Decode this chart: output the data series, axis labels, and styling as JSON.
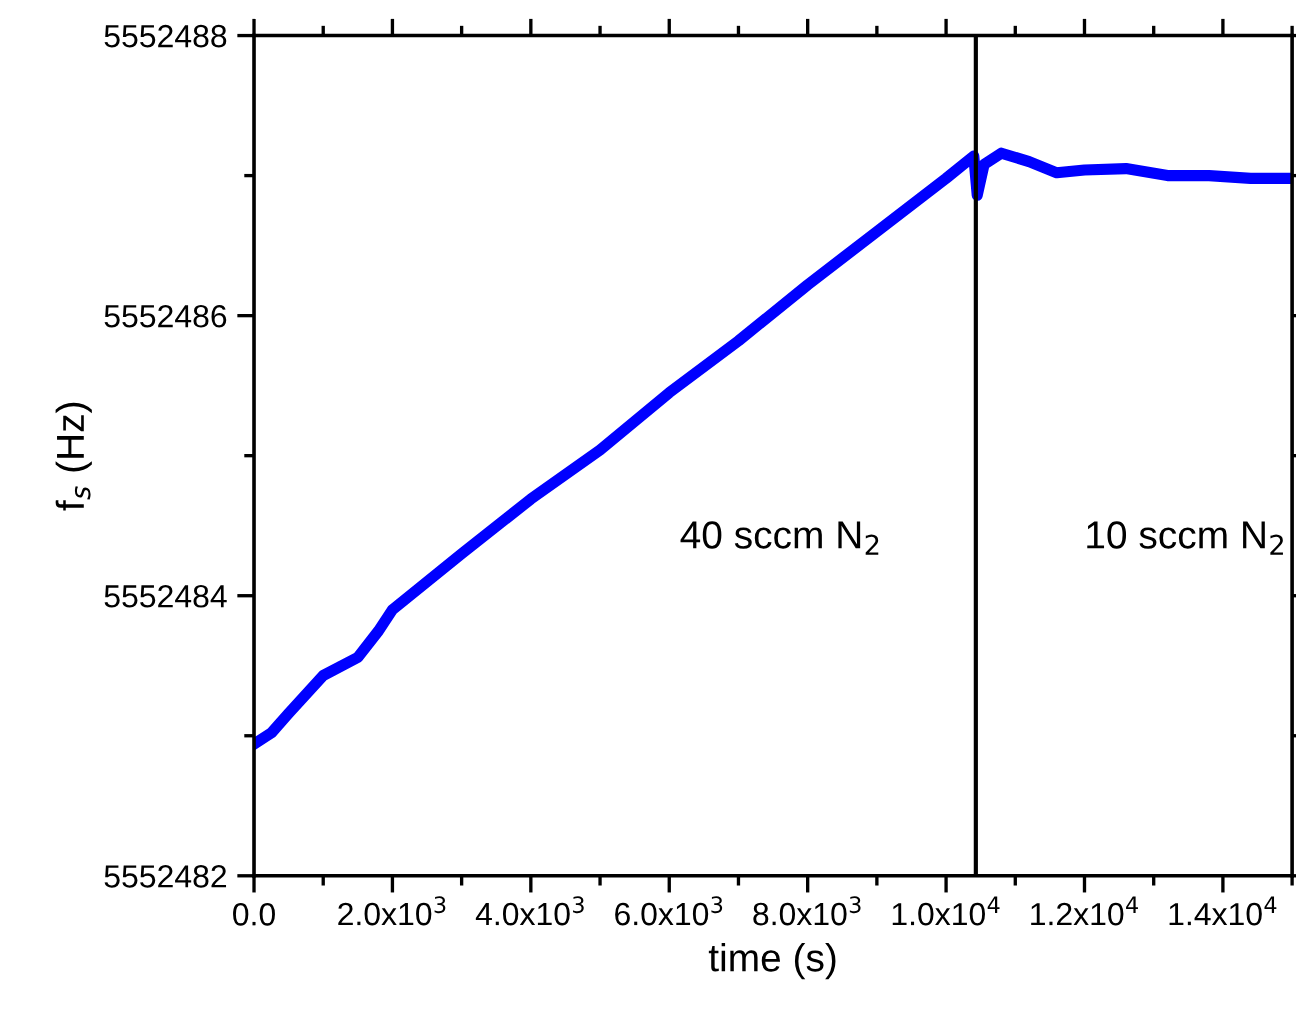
{
  "chart_data": {
    "type": "line",
    "xlabel": "time (s)",
    "ylabel": "f$_{s}$ (Hz)",
    "x": [
      0,
      250,
      500,
      1000,
      1500,
      1800,
      2000,
      3000,
      4000,
      5000,
      6000,
      7000,
      8000,
      9000,
      10000,
      10400,
      10450,
      10550,
      10800,
      11200,
      11600,
      12000,
      12600,
      13200,
      13800,
      14400,
      15000
    ],
    "series": [
      {
        "color": "#0000ff",
        "values": [
          5552482.94,
          5552483.02,
          5552483.16,
          5552483.43,
          5552483.56,
          5552483.75,
          5552483.9,
          5552484.3,
          5552484.69,
          5552485.04,
          5552485.45,
          5552485.82,
          5552486.22,
          5552486.6,
          5552486.98,
          5552487.14,
          5552486.86,
          5552487.08,
          5552487.16,
          5552487.1,
          5552487.02,
          5552487.04,
          5552487.05,
          5552487.0,
          5552487.0,
          5552486.98,
          5552486.98
        ]
      }
    ],
    "xlim": [
      0,
      15000
    ],
    "xticks": [
      {
        "value": 0,
        "label": "0.0"
      },
      {
        "value": 2000,
        "label": "2.0x10$^{3}$"
      },
      {
        "value": 4000,
        "label": "4.0x10$^{3}$"
      },
      {
        "value": 6000,
        "label": "6.0x10$^{3}$"
      },
      {
        "value": 8000,
        "label": "8.0x10$^{3}$"
      },
      {
        "value": 10000,
        "label": "1.0x10$^{4}$"
      },
      {
        "value": 12000,
        "label": "1.2x10$^{4}$"
      },
      {
        "value": 14000,
        "label": "1.4x10$^{4}$"
      }
    ],
    "ylim": [
      5552482,
      5552488
    ],
    "yticks": [
      5552482,
      5552484,
      5552486,
      5552488
    ],
    "ref_lines": [
      {
        "axis": "x",
        "value": 10430,
        "color": "#000000"
      }
    ],
    "annotations": [
      "40 sccm N$_{2}$",
      "10 sccm N$_{2}$"
    ],
    "grid": false,
    "legend": false,
    "marker": "none",
    "line_style": "solid"
  }
}
